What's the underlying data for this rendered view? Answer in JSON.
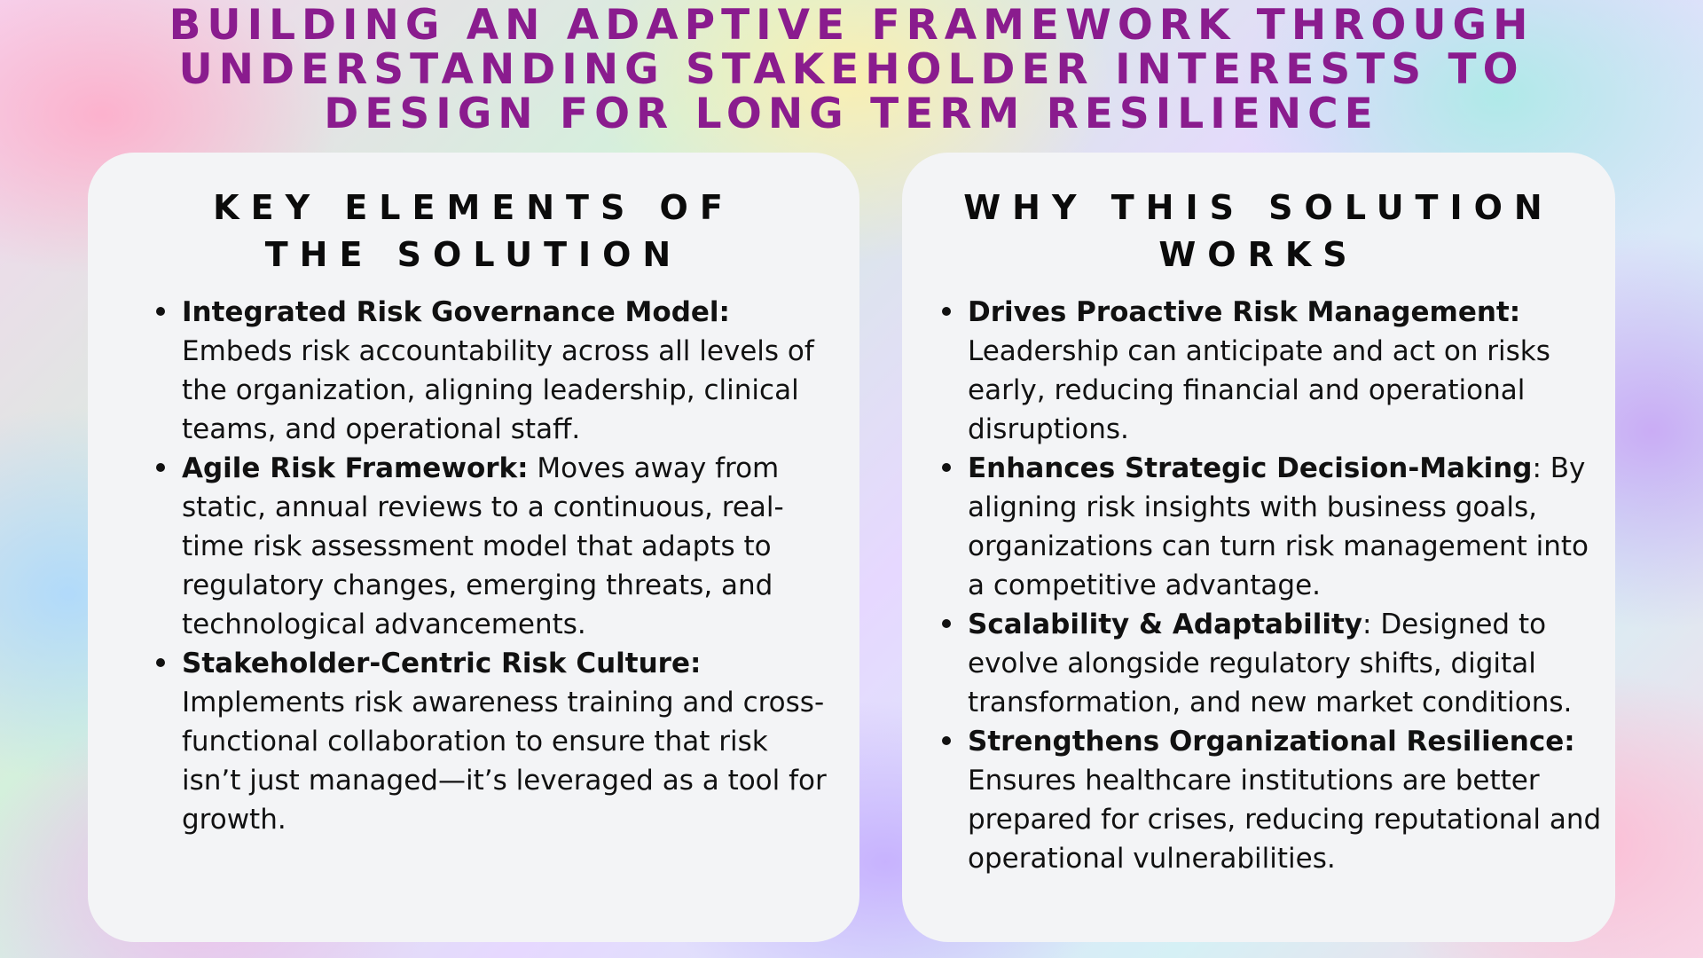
{
  "title": {
    "lines": [
      "BUILDING AN ADAPTIVE  FRAMEWORK THROUGH",
      "UNDERSTANDING STAKEHOLDER INTERESTS TO",
      "DESIGN FOR LONG TERM RESILIENCE"
    ]
  },
  "left_card": {
    "heading_lines": [
      "KEY ELEMENTS OF",
      "THE SOLUTION"
    ],
    "items": [
      {
        "term": "Integrated Risk Governance Model:",
        "text": " Embeds risk accountability across all levels of the organization, aligning leadership, clinical teams, and operational staff."
      },
      {
        "term": "Agile Risk Framework:",
        "text": " Moves away from static, annual reviews to a continuous, real-time risk assessment model that adapts to regulatory changes, emerging threats, and technological advancements."
      },
      {
        "term": "Stakeholder-Centric Risk Culture:",
        "text": " Implements risk awareness training and cross-functional collaboration to ensure that risk isn’t just managed—it’s leveraged as a tool for growth."
      }
    ]
  },
  "right_card": {
    "heading_lines": [
      "WHY THIS SOLUTION",
      "WORKS"
    ],
    "items": [
      {
        "term": "Drives Proactive Risk Management:",
        "text": " Leadership can anticipate and act on risks early, reducing financial and operational disruptions."
      },
      {
        "term": "Enhances Strategic Decision-Making",
        "text": ": By aligning risk insights with business goals, organizations can turn risk management into a competitive advantage."
      },
      {
        "term": "Scalability & Adaptability",
        "text": ": Designed to evolve alongside regulatory shifts, digital transformation, and new market conditions."
      },
      {
        "term": "Strengthens Organizational Resilience:",
        "text": " Ensures healthcare institutions are better prepared for crises, reducing reputational and operational vulnerabilities."
      }
    ]
  }
}
